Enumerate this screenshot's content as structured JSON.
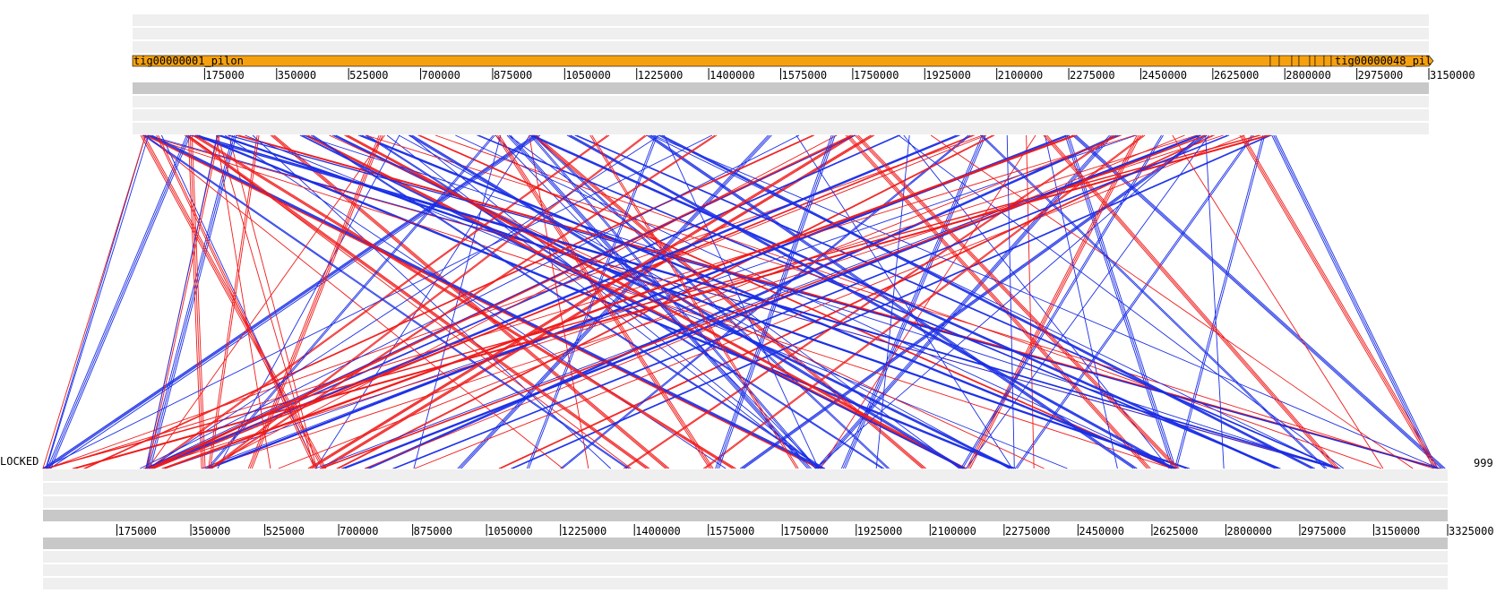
{
  "top_track": {
    "contig_label_1": "tig00000001_pilon",
    "contig_label_2": "tig00000048_pil",
    "contig_color": "#f5a10f",
    "ticks": [
      "175000",
      "350000",
      "525000",
      "700000",
      "875000",
      "1050000",
      "1225000",
      "1400000",
      "1575000",
      "1750000",
      "1925000",
      "2100000",
      "2275000",
      "2450000",
      "2625000",
      "2800000",
      "2975000",
      "3150000"
    ],
    "max_position": 3150000,
    "end_position": 3150000
  },
  "bottom_track": {
    "ticks": [
      "175000",
      "350000",
      "525000",
      "700000",
      "875000",
      "1050000",
      "1225000",
      "1400000",
      "1575000",
      "1750000",
      "1925000",
      "2100000",
      "2275000",
      "2450000",
      "2625000",
      "2800000",
      "2975000",
      "3150000",
      "3325000"
    ],
    "max_position": 3325000,
    "end_position": 3325000
  },
  "left_label": "LOCKED",
  "right_label": "999",
  "colors": {
    "forward_match": "#1a2ee6",
    "reverse_match": "#f01a1a",
    "track_light": "#efefef",
    "track_dark": "#c8c8c8"
  }
}
